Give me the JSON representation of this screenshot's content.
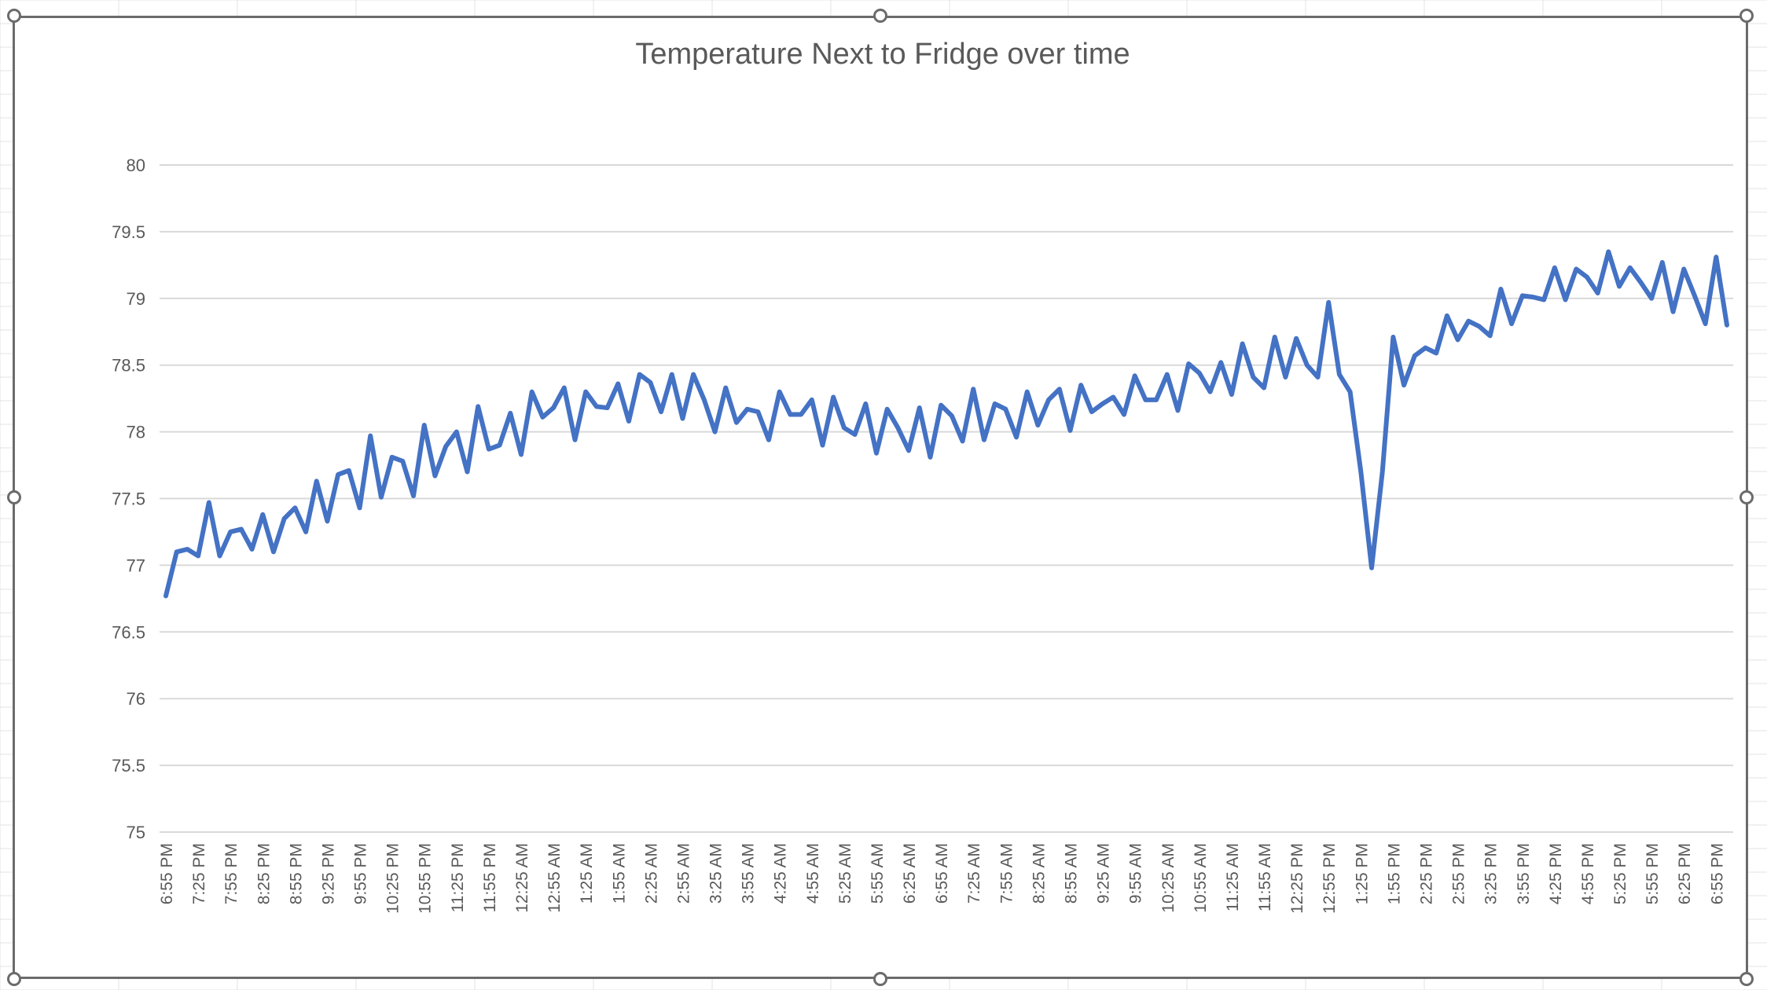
{
  "chart_data": {
    "type": "line",
    "title": "Temperature Next to Fridge over time",
    "xlabel": "",
    "ylabel": "",
    "ylim": [
      75,
      80
    ],
    "yticks": [
      "75",
      "75.5",
      "76",
      "76.5",
      "77",
      "77.5",
      "78",
      "78.5",
      "79",
      "79.5",
      "80"
    ],
    "gridlines": true,
    "legend": "none",
    "line_color": "#4472C4",
    "x_tick_labels": [
      "6:55 PM",
      "7:25 PM",
      "7:55 PM",
      "8:25 PM",
      "8:55 PM",
      "9:25 PM",
      "9:55 PM",
      "10:25 PM",
      "10:55 PM",
      "11:25 PM",
      "11:55 PM",
      "12:25 AM",
      "12:55 AM",
      "1:25 AM",
      "1:55 AM",
      "2:25 AM",
      "2:55 AM",
      "3:25 AM",
      "3:55 AM",
      "4:25 AM",
      "4:55 AM",
      "5:25 AM",
      "5:55 AM",
      "6:25 AM",
      "6:55 AM",
      "7:25 AM",
      "7:55 AM",
      "8:25 AM",
      "8:55 AM",
      "9:25 AM",
      "9:55 AM",
      "10:25 AM",
      "10:55 AM",
      "11:25 AM",
      "11:55 AM",
      "12:25 PM",
      "12:55 PM",
      "1:25 PM",
      "1:55 PM",
      "2:25 PM",
      "2:55 PM",
      "3:25 PM",
      "3:55 PM",
      "4:25 PM",
      "4:55 PM",
      "5:25 PM",
      "5:55 PM",
      "6:25 PM",
      "6:55 PM"
    ],
    "series": [
      {
        "values": [
          76.77,
          77.1,
          77.12,
          77.07,
          77.47,
          77.07,
          77.25,
          77.27,
          77.12,
          77.38,
          77.1,
          77.35,
          77.43,
          77.25,
          77.63,
          77.33,
          77.68,
          77.71,
          77.43,
          77.97,
          77.51,
          77.81,
          77.78,
          77.52,
          78.05,
          77.67,
          77.89,
          78.0,
          77.7,
          78.19,
          77.87,
          77.9,
          78.14,
          77.83,
          78.3,
          78.11,
          78.18,
          78.33,
          77.94,
          78.3,
          78.19,
          78.18,
          78.36,
          78.08,
          78.43,
          78.37,
          78.15,
          78.43,
          78.1,
          78.43,
          78.24,
          78.0,
          78.33,
          78.07,
          78.17,
          78.15,
          77.94,
          78.3,
          78.13,
          78.13,
          78.24,
          77.9,
          78.26,
          78.03,
          77.98,
          78.21,
          77.84,
          78.17,
          78.03,
          77.86,
          78.18,
          77.81,
          78.2,
          78.12,
          77.93,
          78.32,
          77.94,
          78.21,
          78.17,
          77.96,
          78.3,
          78.05,
          78.24,
          78.32,
          78.01,
          78.35,
          78.15,
          78.21,
          78.26,
          78.13,
          78.42,
          78.24,
          78.24,
          78.43,
          78.16,
          78.51,
          78.44,
          78.3,
          78.52,
          78.28,
          78.66,
          78.41,
          78.33,
          78.71,
          78.41,
          78.7,
          78.5,
          78.41,
          78.97,
          78.43,
          78.3,
          77.7,
          76.98,
          77.7,
          78.71,
          78.35,
          78.57,
          78.63,
          78.59,
          78.87,
          78.69,
          78.83,
          78.79,
          78.72,
          79.07,
          78.81,
          79.02,
          79.01,
          78.99,
          79.23,
          78.99,
          79.22,
          79.16,
          79.04,
          79.35,
          79.09,
          79.23,
          79.12,
          79.0,
          79.27,
          78.9,
          79.22,
          79.02,
          78.81,
          79.31,
          78.8
        ]
      }
    ]
  }
}
